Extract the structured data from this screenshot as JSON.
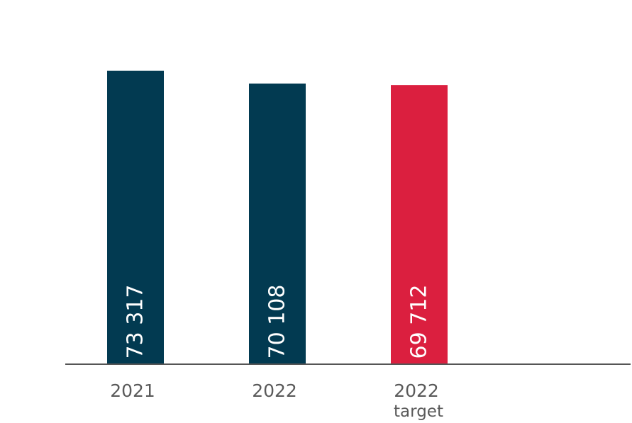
{
  "chart_data": {
    "type": "bar",
    "categories": [
      {
        "label": "2021",
        "sublabel": ""
      },
      {
        "label": "2022",
        "sublabel": ""
      },
      {
        "label": "2022",
        "sublabel": "target"
      }
    ],
    "values": [
      73317,
      70108,
      69712
    ],
    "value_labels": [
      "73 317",
      "70 108",
      "69 712"
    ],
    "bar_colors": [
      "#023a51",
      "#023a51",
      "#db1f3f"
    ],
    "axis_color": "#555555",
    "ylim": [
      0,
      80000
    ],
    "grid": false,
    "legend": "none"
  }
}
